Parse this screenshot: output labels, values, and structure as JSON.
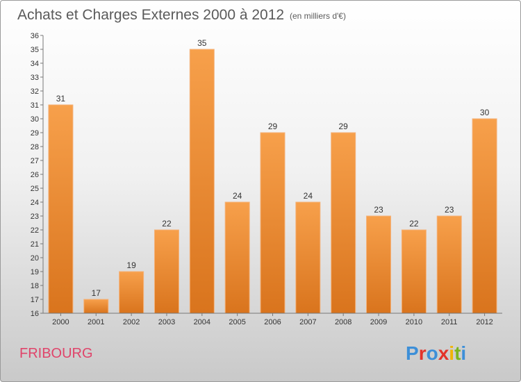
{
  "chart_data": {
    "type": "bar",
    "title": "Achats et Charges Externes 2000 à 2012",
    "subtitle": "(en milliers d'€)",
    "categories": [
      "2000",
      "2001",
      "2002",
      "2003",
      "2004",
      "2005",
      "2006",
      "2007",
      "2008",
      "2009",
      "2010",
      "2011",
      "2012"
    ],
    "values": [
      31,
      17,
      19,
      22,
      35,
      24,
      29,
      24,
      29,
      23,
      22,
      23,
      30
    ],
    "ylim": [
      16,
      36
    ],
    "yticks": [
      16,
      17,
      18,
      19,
      20,
      21,
      22,
      23,
      24,
      25,
      26,
      27,
      28,
      29,
      30,
      31,
      32,
      33,
      34,
      35,
      36
    ],
    "grid": false,
    "xlabel": "",
    "ylabel": "",
    "bar_color_top": "#f7a04b",
    "bar_color_bottom": "#d9741d"
  },
  "footer": {
    "place_name": "FRIBOURG",
    "logo_text": "Proxiti",
    "logo_colors": [
      "#3d8fd8",
      "#e3332b",
      "#3d8fd8",
      "#e3332b",
      "#f1b400",
      "#7ab51d",
      "#3d8fd8"
    ]
  }
}
